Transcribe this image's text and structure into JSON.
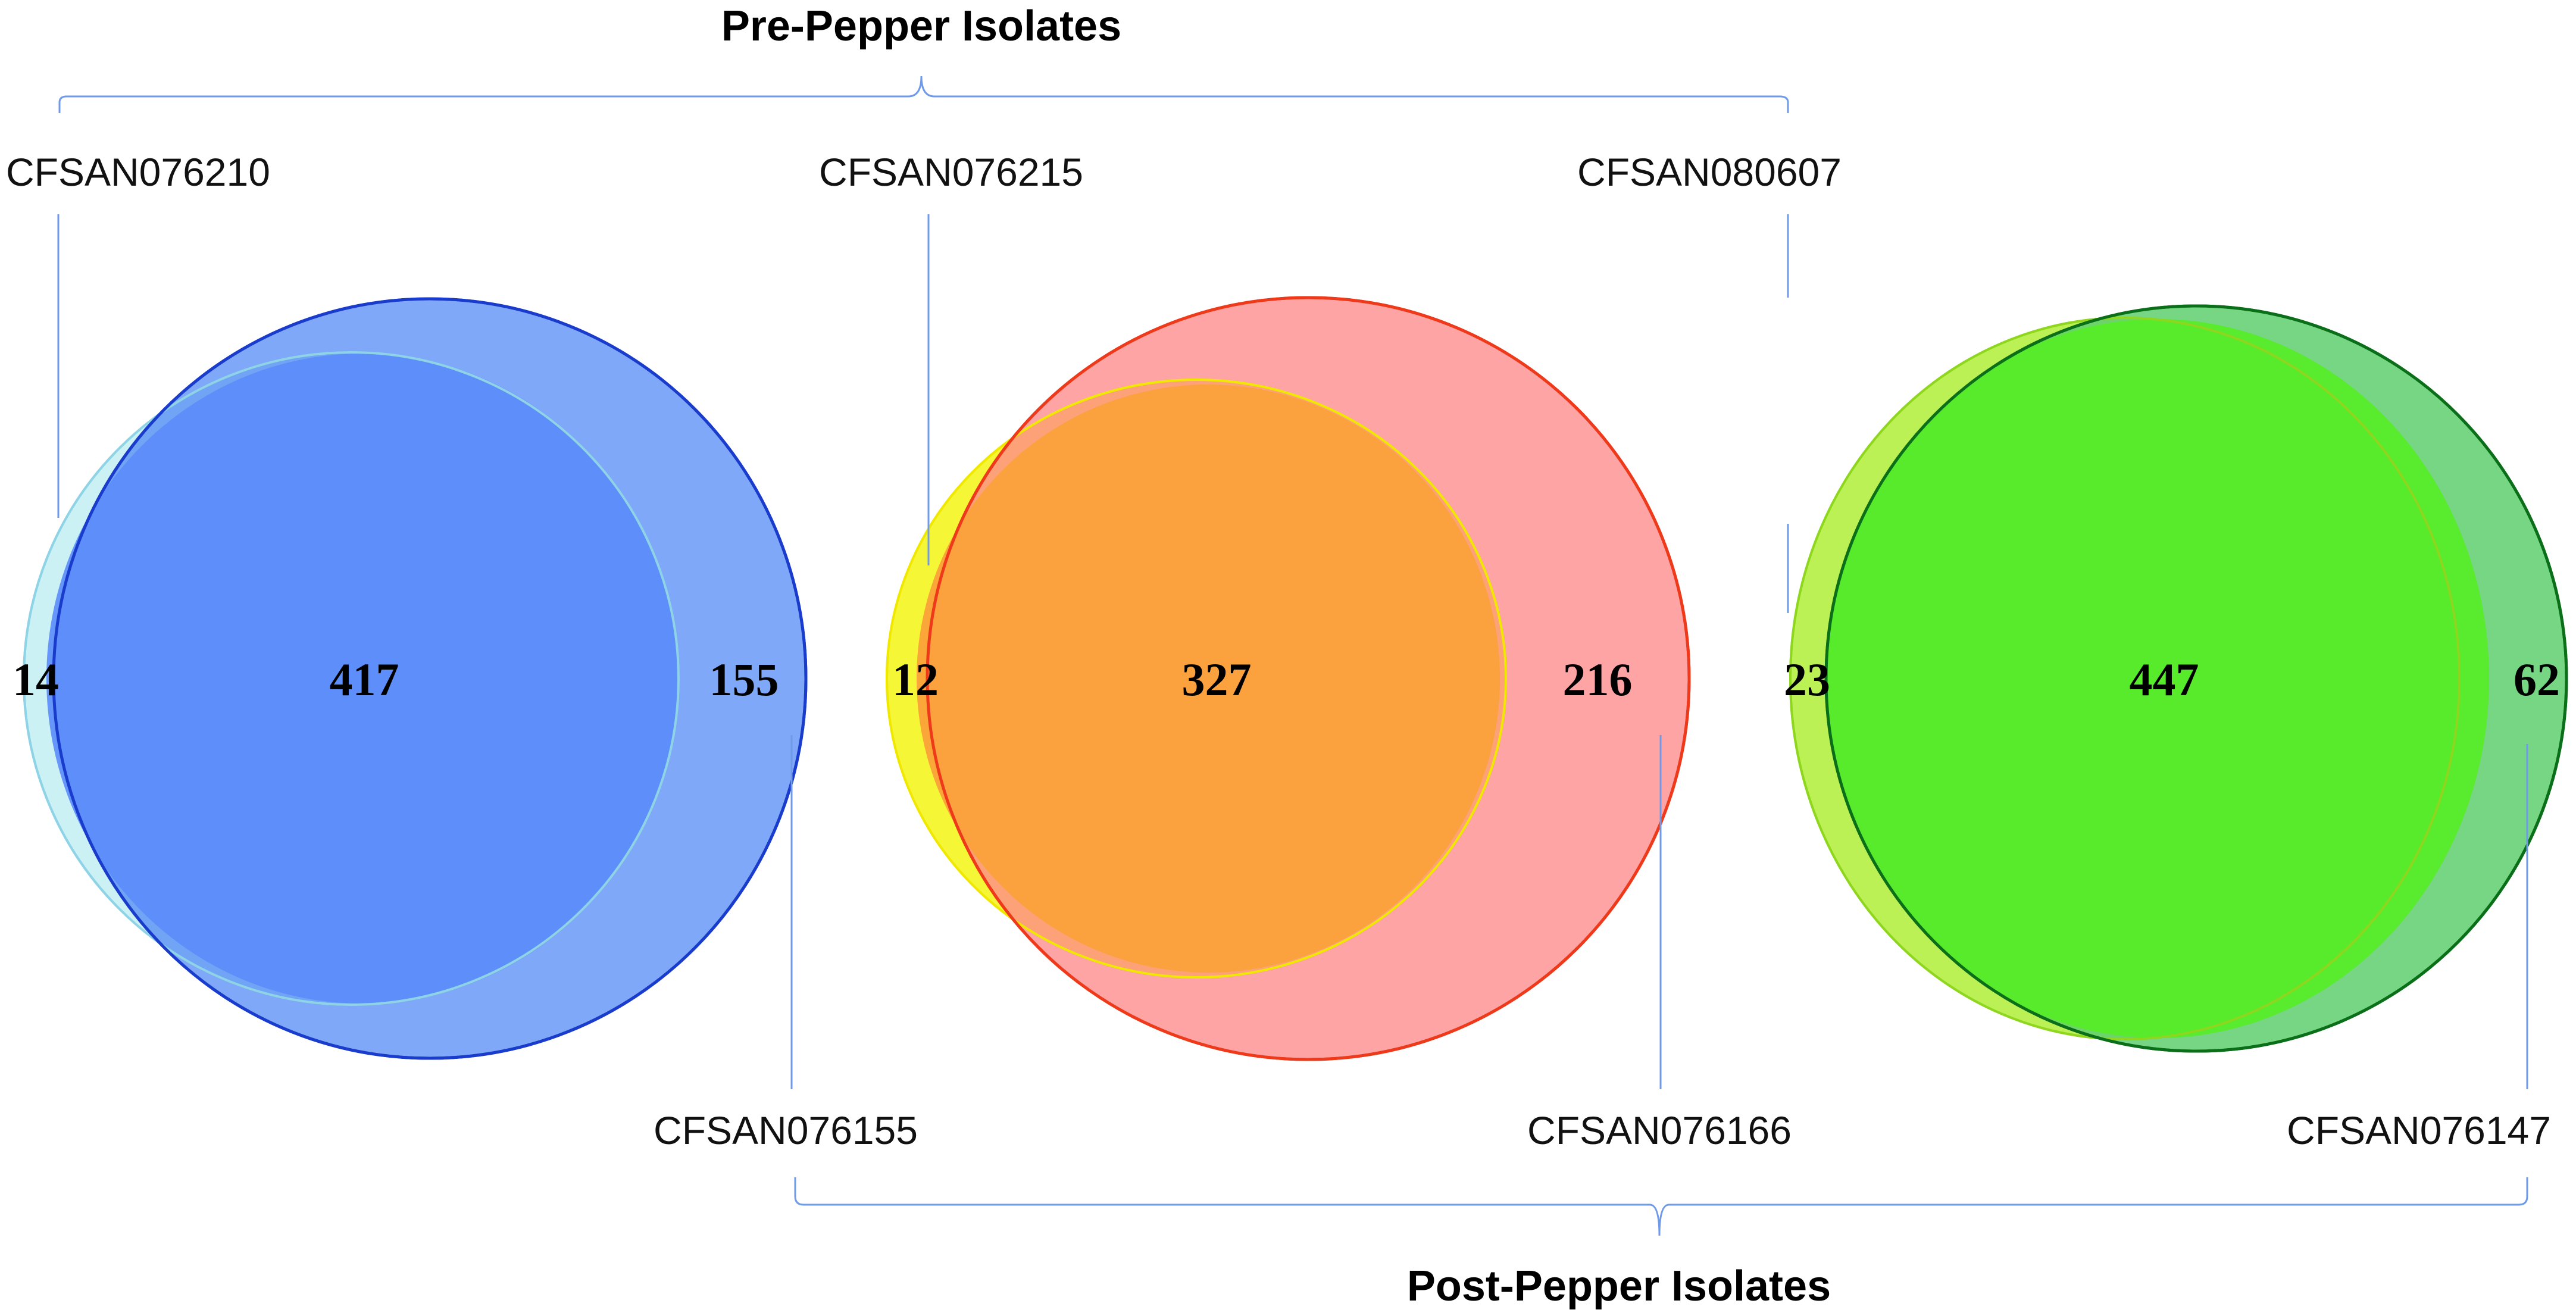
{
  "pre_group": {
    "title": "Pre-Pepper Isolates"
  },
  "post_group": {
    "title": "Post-Pepper Isolates"
  },
  "venns": [
    {
      "pre_isolate": "CFSAN076210",
      "post_isolate": "CFSAN076155",
      "pre_only": "14",
      "shared": "417",
      "post_only": "155",
      "colors": {
        "pre_fill": "#c8f0f4",
        "pre_stroke": "#8fd3e6",
        "post_fill": "#4f86f7",
        "post_stroke": "#1a3ccc",
        "overlap_fill": "#5b8cfa"
      }
    },
    {
      "pre_isolate": "CFSAN076215",
      "post_isolate": "CFSAN076166",
      "pre_only": "12",
      "shared": "327",
      "post_only": "216",
      "colors": {
        "pre_fill": "#f4f52a",
        "pre_stroke": "#f0e800",
        "post_fill": "#ff8a8c",
        "post_stroke": "#ee3a1a",
        "overlap_fill": "#fba13a"
      }
    },
    {
      "pre_isolate": "CFSAN080607",
      "post_isolate": "CFSAN076147",
      "pre_only": "23",
      "shared": "447",
      "post_only": "62",
      "colors": {
        "pre_fill": "#b8f04c",
        "pre_stroke": "#8fd61e",
        "post_fill": "#5ecf6e",
        "post_stroke": "#0b6e18",
        "overlap_fill": "#57ec29"
      }
    }
  ]
}
